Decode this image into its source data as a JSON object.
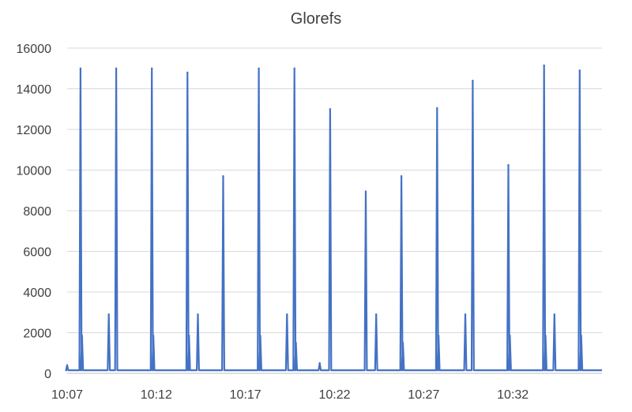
{
  "chart_data": {
    "type": "line",
    "title": "Glorefs",
    "xlabel": "",
    "ylabel": "",
    "ylim": [
      0,
      16000
    ],
    "y_ticks": [
      "0",
      "2000",
      "4000",
      "6000",
      "8000",
      "10000",
      "12000",
      "14000",
      "16000"
    ],
    "x_tick_labels": [
      "10:07",
      "10:12",
      "10:17",
      "10:22",
      "10:27",
      "10:32"
    ],
    "x_range": [
      "10:07",
      "10:37"
    ],
    "grid": "horizontal",
    "legend": "none",
    "baseline": 150,
    "series": [
      {
        "color": "#4472C4",
        "points": [
          {
            "time": "10:07:00",
            "value": 400
          },
          {
            "time": "10:07:45",
            "value": 15000
          },
          {
            "time": "10:07:50",
            "value": 1850
          },
          {
            "time": "10:09:20",
            "value": 2900
          },
          {
            "time": "10:09:45",
            "value": 15000
          },
          {
            "time": "10:11:45",
            "value": 15000
          },
          {
            "time": "10:11:50",
            "value": 1850
          },
          {
            "time": "10:13:45",
            "value": 14800
          },
          {
            "time": "10:13:50",
            "value": 1850
          },
          {
            "time": "10:14:20",
            "value": 2900
          },
          {
            "time": "10:15:45",
            "value": 9700
          },
          {
            "time": "10:17:45",
            "value": 15000
          },
          {
            "time": "10:17:50",
            "value": 1850
          },
          {
            "time": "10:19:20",
            "value": 2900
          },
          {
            "time": "10:19:45",
            "value": 15000
          },
          {
            "time": "10:19:50",
            "value": 1500
          },
          {
            "time": "10:21:10",
            "value": 500
          },
          {
            "time": "10:21:45",
            "value": 13000
          },
          {
            "time": "10:23:45",
            "value": 8950
          },
          {
            "time": "10:24:20",
            "value": 2900
          },
          {
            "time": "10:25:45",
            "value": 9700
          },
          {
            "time": "10:25:50",
            "value": 1500
          },
          {
            "time": "10:27:45",
            "value": 13050
          },
          {
            "time": "10:27:50",
            "value": 1850
          },
          {
            "time": "10:29:20",
            "value": 2900
          },
          {
            "time": "10:29:45",
            "value": 14400
          },
          {
            "time": "10:31:45",
            "value": 10250
          },
          {
            "time": "10:31:50",
            "value": 1850
          },
          {
            "time": "10:33:45",
            "value": 15150
          },
          {
            "time": "10:33:50",
            "value": 1850
          },
          {
            "time": "10:34:20",
            "value": 2900
          },
          {
            "time": "10:35:45",
            "value": 14900
          },
          {
            "time": "10:35:50",
            "value": 1850
          }
        ]
      }
    ]
  }
}
